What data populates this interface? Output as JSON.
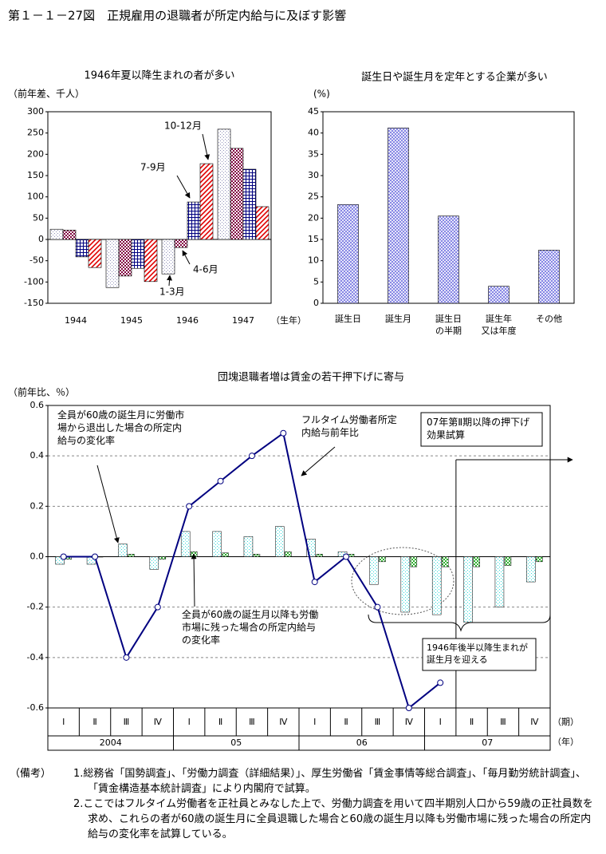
{
  "title": "第１－１－27図　正規雇用の退職者が所定内給与に及ぼす影響",
  "chart_data": [
    {
      "type": "bar",
      "title": "1946年夏以降生まれの者が多い",
      "y_label": "（前年差、千人）",
      "x_label": "（生年）",
      "categories": [
        "1944",
        "1945",
        "1946",
        "1947"
      ],
      "series": [
        {
          "name": "1-3月",
          "color": "#9090b8",
          "values": [
            24,
            -113,
            -81,
            259
          ]
        },
        {
          "name": "4-6月",
          "color": "#800040",
          "values": [
            22,
            -86,
            -19,
            214
          ]
        },
        {
          "name": "7-9月",
          "color": "#000080",
          "values": [
            -41,
            -68,
            88,
            165
          ]
        },
        {
          "name": "10-12月",
          "color": "#e00000",
          "values": [
            -66,
            -99,
            178,
            77
          ]
        }
      ],
      "ylim": [
        -150,
        300
      ],
      "yticks": [
        -150,
        -100,
        -50,
        0,
        50,
        100,
        150,
        200,
        250,
        300
      ]
    },
    {
      "type": "bar",
      "title": "誕生日や誕生月を定年とする企業が多い",
      "y_label": "(%)",
      "categories": [
        [
          "誕生日"
        ],
        [
          "誕生月"
        ],
        [
          "誕生日",
          "の半期"
        ],
        [
          "誕生年",
          "又は年度"
        ],
        [
          "その他"
        ]
      ],
      "values": [
        23.2,
        41.2,
        20.5,
        4.0,
        12.5
      ],
      "color": "#7070e0",
      "ylim": [
        0,
        45
      ],
      "yticks": [
        0,
        5,
        10,
        15,
        20,
        25,
        30,
        35,
        40,
        45
      ]
    },
    {
      "type": "combo",
      "title": "団塊退職者増は賃金の若干押下げに寄与",
      "y_label": "（前年比、％）",
      "categories": [
        "Ⅰ",
        "Ⅱ",
        "Ⅲ",
        "Ⅳ",
        "Ⅰ",
        "Ⅱ",
        "Ⅲ",
        "Ⅳ",
        "Ⅰ",
        "Ⅱ",
        "Ⅲ",
        "Ⅳ",
        "Ⅰ",
        "Ⅱ",
        "Ⅲ",
        "Ⅳ"
      ],
      "x_label": "（期）",
      "years": [
        "2004",
        "05",
        "06",
        "07"
      ],
      "year_label": "（年）",
      "series": [
        {
          "name": "全員が60歳の誕生月に労働市場から退出した場合の所定内給与の変化率",
          "kind": "bar",
          "color": "#30d8d8",
          "values": [
            -0.03,
            -0.03,
            0.05,
            -0.05,
            0.1,
            0.1,
            0.08,
            0.12,
            0.07,
            0.02,
            -0.11,
            -0.22,
            -0.23,
            -0.26,
            -0.2,
            -0.1
          ]
        },
        {
          "name": "全員が60歳の誕生月以降も労働市場に残った場合の所定内給与の変化率",
          "kind": "bar",
          "color": "#30b030",
          "values": [
            -0.01,
            0.0,
            0.01,
            -0.01,
            0.02,
            0.015,
            0.01,
            0.02,
            0.01,
            0.01,
            -0.02,
            -0.04,
            -0.04,
            -0.04,
            -0.035,
            -0.02
          ]
        },
        {
          "name": "フルタイム労働者所定内給与前年比",
          "kind": "line",
          "color": "#000080",
          "values": [
            0,
            0,
            -0.4,
            -0.2,
            0.2,
            0.3,
            0.4,
            0.49,
            -0.1,
            0,
            -0.2,
            -0.6,
            -0.5,
            null,
            null,
            null
          ]
        }
      ],
      "annotations": [
        "07年第Ⅱ期以降の押下げ効果試算",
        "1946年後半以降生まれが誕生月を迎える"
      ],
      "ylim": [
        -0.6,
        0.6
      ],
      "yticks": [
        -0.6,
        -0.4,
        -0.2,
        {
          "value": 0,
          "label": "0.0"
        },
        0.2,
        0.4,
        0.6
      ],
      "grid": true
    }
  ],
  "notes": {
    "label": "（備考）",
    "items": [
      "1.総務省「国勢調査」、「労働力調査（詳細結果）」、厚生労働省「賃金事情等総合調査」、「毎月勤労統計調査」、「賃金構造基本統計調査」により内閣府で試算。",
      "2.ここではフルタイム労働者を正社員とみなした上で、労働力調査を用いて四半期別人口から59歳の正社員数を求め、これらの者が60歳の誕生月に全員退職した場合と60歳の誕生月以降も労働市場に残った場合の所定内給与の変化率を試算している。"
    ]
  }
}
